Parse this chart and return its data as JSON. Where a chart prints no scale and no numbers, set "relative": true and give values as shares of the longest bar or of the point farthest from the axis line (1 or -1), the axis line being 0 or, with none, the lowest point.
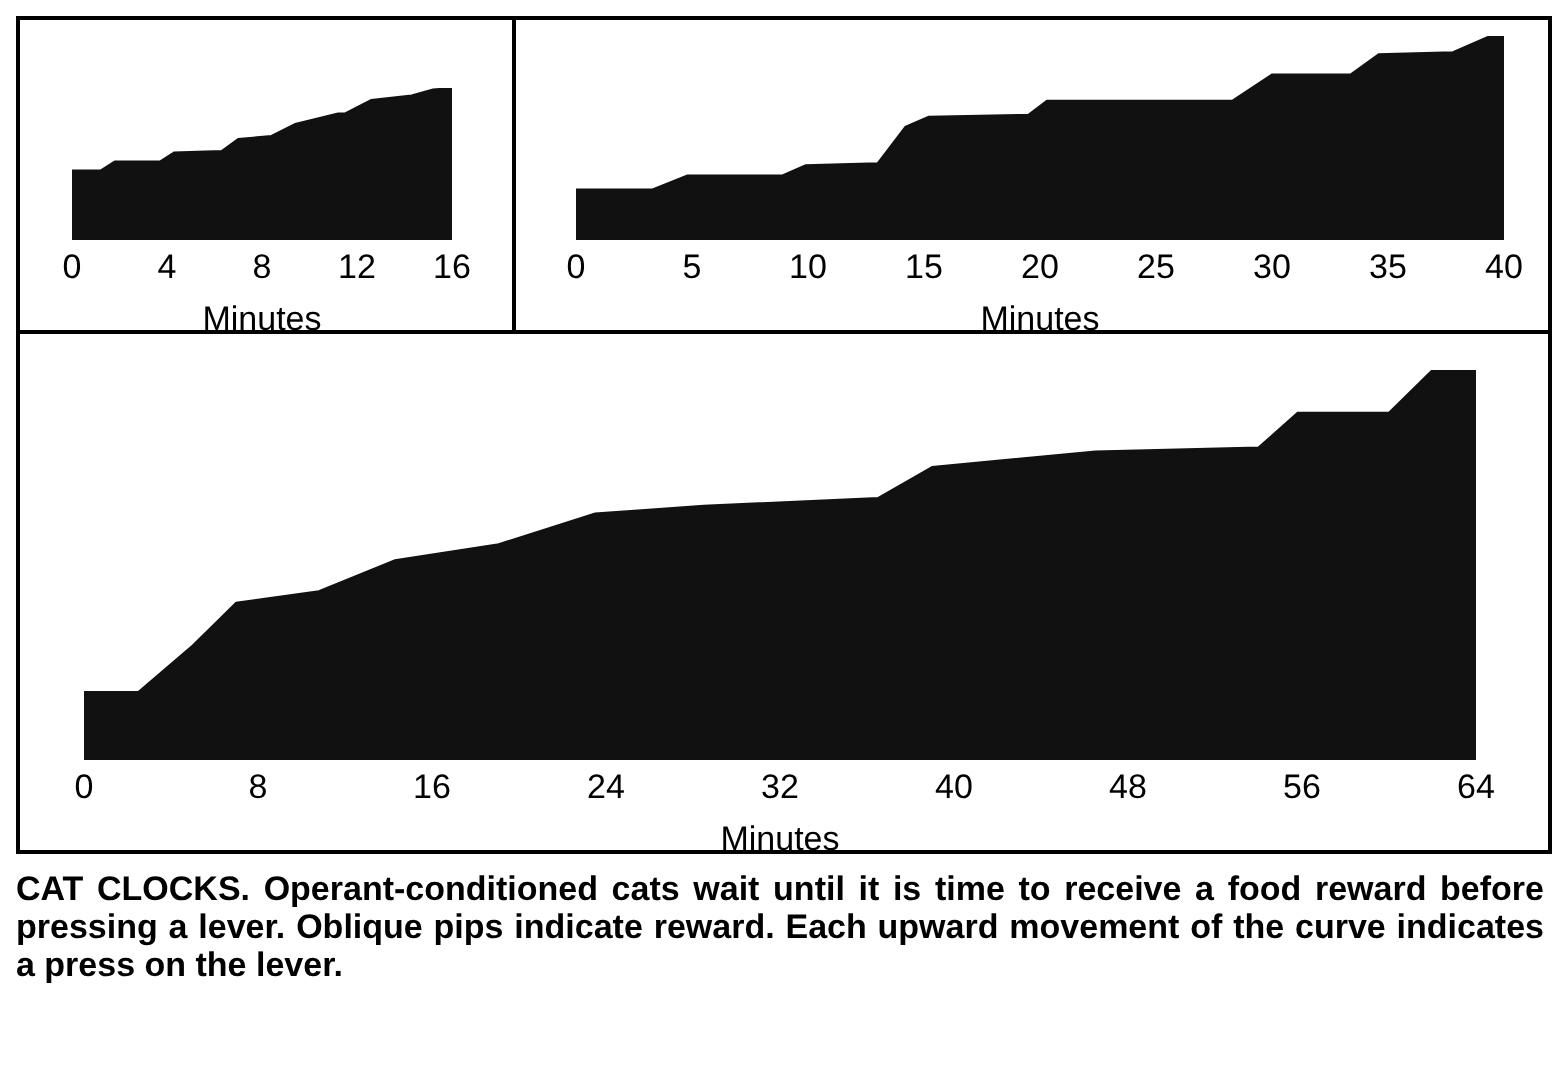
{
  "chart_data": [
    {
      "type": "area",
      "relative": true,
      "xlabel": "Minutes",
      "xlim": [
        0,
        16
      ],
      "xticks": [
        0,
        4,
        8,
        12,
        16
      ],
      "grid": false,
      "legend": false,
      "series": [
        {
          "color": "#111111",
          "x": [
            0,
            1.2,
            1.8,
            3.7,
            4.3,
            6.3,
            7,
            8.4,
            9.4,
            11.2,
            11.5,
            12.6,
            14.3,
            15.2,
            16
          ],
          "values": [
            0.45,
            0.45,
            0.51,
            0.51,
            0.57,
            0.58,
            0.66,
            0.68,
            0.76,
            0.83,
            0.83,
            0.92,
            0.95,
            0.99,
            1
          ]
        }
      ]
    },
    {
      "type": "area",
      "relative": true,
      "xlabel": "Minutes",
      "xlim": [
        0,
        40
      ],
      "xticks": [
        0,
        5,
        10,
        15,
        20,
        25,
        30,
        35,
        40
      ],
      "grid": false,
      "legend": false,
      "series": [
        {
          "color": "#111111",
          "x": [
            0,
            3.3,
            4.8,
            8.9,
            9.9,
            13,
            14.2,
            15.2,
            19.5,
            20.3,
            28.3,
            30,
            33.4,
            34.6,
            37.8,
            39.4,
            40
          ],
          "values": [
            0.24,
            0.24,
            0.31,
            0.31,
            0.36,
            0.37,
            0.55,
            0.6,
            0.61,
            0.68,
            0.68,
            0.81,
            0.81,
            0.91,
            0.92,
            1,
            1
          ]
        }
      ]
    },
    {
      "type": "area",
      "relative": true,
      "xlabel": "Minutes",
      "xlim": [
        0,
        64
      ],
      "xticks": [
        0,
        8,
        16,
        24,
        32,
        40,
        48,
        56,
        64
      ],
      "grid": false,
      "legend": false,
      "series": [
        {
          "color": "#111111",
          "x": [
            0,
            2.5,
            5,
            7,
            10.8,
            14.3,
            19,
            23.5,
            28.5,
            36.5,
            39,
            46.5,
            54,
            55.8,
            60,
            62,
            64
          ],
          "values": [
            0.17,
            0.17,
            0.29,
            0.4,
            0.43,
            0.51,
            0.55,
            0.63,
            0.65,
            0.67,
            0.75,
            0.79,
            0.8,
            0.89,
            0.89,
            1,
            1
          ]
        }
      ],
      "annotations": [
        "CAT CLOCKS. Operant-conditioned cats wait until it is time to receive a food reward before pressing a lever. Oblique pips indicate reward. Each upward movement of the curve indicates a press on the lever."
      ]
    }
  ]
}
